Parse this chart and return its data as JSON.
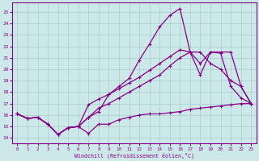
{
  "xlabel": "Windchill (Refroidissement éolien,°C)",
  "background_color": "#cce8e8",
  "grid_color": "#aacccc",
  "line_color": "#880088",
  "x_ticks": [
    0,
    1,
    2,
    3,
    4,
    5,
    6,
    7,
    8,
    9,
    10,
    11,
    12,
    13,
    14,
    15,
    16,
    17,
    18,
    19,
    20,
    21,
    22,
    23
  ],
  "y_ticks": [
    14,
    15,
    16,
    17,
    18,
    19,
    20,
    21,
    22,
    23,
    24,
    25
  ],
  "ylim": [
    13.5,
    25.8
  ],
  "xlim": [
    -0.5,
    23.5
  ],
  "line1_x": [
    0,
    1,
    2,
    3,
    4,
    5,
    6,
    7,
    8,
    9,
    10,
    11,
    12,
    13,
    14,
    15,
    16,
    17,
    18,
    19,
    20,
    21,
    22,
    23
  ],
  "line1_y": [
    16.1,
    15.7,
    15.8,
    15.2,
    14.3,
    14.9,
    15.0,
    14.4,
    15.2,
    15.2,
    15.6,
    15.8,
    16.0,
    16.1,
    16.1,
    16.2,
    16.3,
    16.5,
    16.6,
    16.7,
    16.8,
    16.9,
    17.0,
    17.0
  ],
  "line2_x": [
    0,
    1,
    2,
    3,
    4,
    5,
    6,
    7,
    8,
    9,
    10,
    11,
    12,
    13,
    14,
    15,
    16,
    17,
    18,
    19,
    20,
    21,
    22,
    23
  ],
  "line2_y": [
    16.1,
    15.7,
    15.8,
    15.2,
    14.3,
    14.9,
    15.0,
    15.8,
    16.6,
    17.0,
    17.5,
    18.0,
    18.5,
    19.0,
    19.5,
    20.3,
    21.0,
    21.5,
    21.5,
    20.5,
    20.0,
    19.0,
    18.5,
    17.0
  ],
  "line3_x": [
    0,
    1,
    2,
    3,
    4,
    5,
    6,
    7,
    8,
    9,
    10,
    11,
    12,
    13,
    14,
    15,
    16,
    17,
    18,
    19,
    20,
    21,
    22,
    23
  ],
  "line3_y": [
    16.1,
    15.7,
    15.8,
    15.2,
    14.3,
    14.9,
    15.0,
    16.9,
    17.4,
    17.8,
    18.3,
    18.8,
    19.3,
    19.9,
    20.5,
    21.1,
    21.7,
    21.5,
    19.5,
    21.5,
    21.5,
    21.5,
    18.5,
    17.0
  ],
  "line4_x": [
    0,
    1,
    2,
    3,
    4,
    5,
    6,
    7,
    8,
    9,
    10,
    11,
    12,
    13,
    14,
    15,
    16,
    17,
    18,
    19,
    20,
    21,
    22,
    23
  ],
  "line4_y": [
    16.1,
    15.7,
    15.8,
    15.2,
    14.3,
    14.9,
    15.0,
    15.8,
    16.3,
    17.8,
    18.5,
    19.2,
    20.8,
    22.2,
    23.7,
    24.7,
    25.3,
    21.5,
    20.5,
    21.5,
    21.4,
    18.5,
    17.5,
    17.0
  ]
}
